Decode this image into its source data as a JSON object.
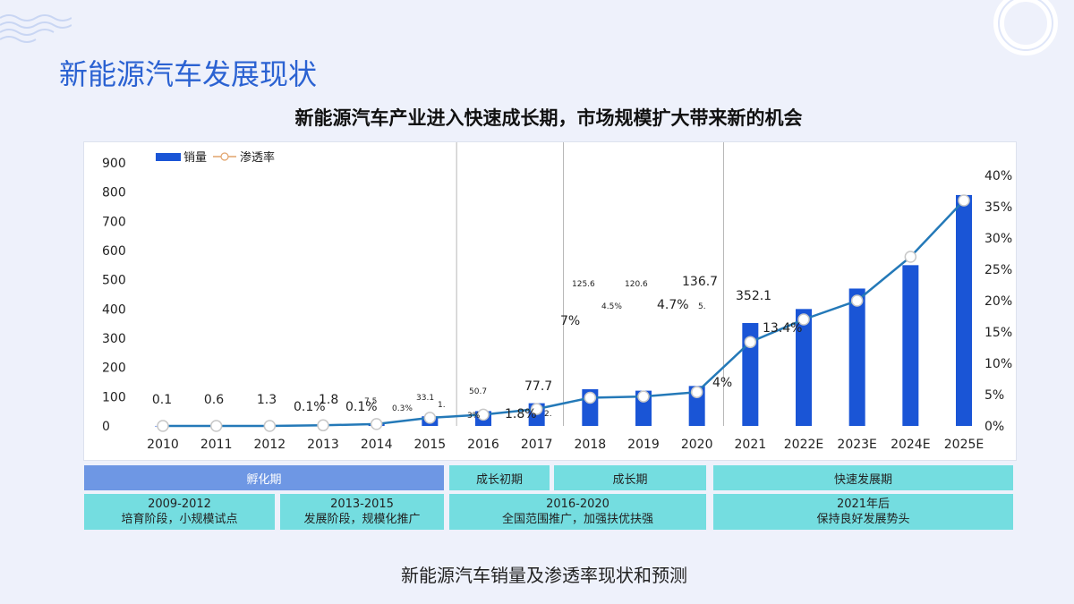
{
  "page_title": "新能源汽车发展现状",
  "chart_title": "新能源汽车产业进入快速成长期，市场规模扩大带来新的机会",
  "caption": "新能源汽车销量及渗透率现状和预测",
  "colors": {
    "bar": "#1a55d6",
    "line": "#2479b8",
    "accent": "#2b62d2",
    "phase_head": "#74dde0",
    "phase_incubation": "#6e97e4"
  },
  "chart_data": {
    "type": "bar+line",
    "categories": [
      "2010",
      "2011",
      "2012",
      "2013",
      "2014",
      "2015",
      "2016",
      "2017",
      "2018",
      "2019",
      "2020",
      "2021",
      "2022E",
      "2023E",
      "2024E",
      "2025E"
    ],
    "series": [
      {
        "name": "销量",
        "type": "bar",
        "axis": "left",
        "values": [
          0.1,
          0.6,
          1.3,
          1.8,
          7.5,
          33.1,
          50.7,
          77.7,
          125.6,
          120.6,
          136.7,
          352.1,
          400,
          470,
          550,
          790
        ]
      },
      {
        "name": "渗透率",
        "type": "line",
        "axis": "right",
        "values": [
          0.0,
          0.0,
          0.0,
          0.1,
          0.3,
          1.3,
          1.8,
          2.7,
          4.5,
          4.7,
          5.4,
          13.4,
          17,
          20,
          27,
          36
        ]
      }
    ],
    "y_left": {
      "ticks": [
        "900",
        "800",
        "700",
        "600",
        "500",
        "400",
        "300",
        "200",
        "100",
        "0"
      ],
      "range": [
        0,
        900
      ]
    },
    "y_right": {
      "ticks": [
        "40%",
        "35%",
        "30%",
        "25%",
        "20%",
        "15%",
        "10%",
        "5%",
        "0%"
      ],
      "range": [
        0,
        40
      ]
    },
    "legend": {
      "placement": "top-left",
      "bar_label": "销量",
      "line_label": "渗透率"
    },
    "labels": [
      "0.1",
      "0.6",
      "1.3",
      "0.1%",
      "1.8",
      "0.1%",
      "7.5",
      "0.3%",
      "33.1",
      "1.",
      "50.7",
      "3%",
      "77.7",
      "1.8%",
      "2.",
      "125.6",
      "7%",
      "120.6",
      "4.5%",
      "136.7",
      "4.7%",
      "5.",
      "352.1",
      "13.4%",
      "4%"
    ],
    "period_dividers_after": [
      "2015",
      "2017",
      "2020"
    ]
  },
  "phases": {
    "incubation": "孵化期",
    "early_growth": "成长初期",
    "growth": "成长期",
    "rapid": "快速发展期",
    "d1_years": "2009-2012",
    "d1_text": "培育阶段，小规模试点",
    "d2_years": "2013-2015",
    "d2_text": "发展阶段，规模化推广",
    "d3_years": "2016-2020",
    "d3_text": "全国范围推广，加强扶优扶强",
    "d4_years": "2021年后",
    "d4_text": "保持良好发展势头"
  }
}
